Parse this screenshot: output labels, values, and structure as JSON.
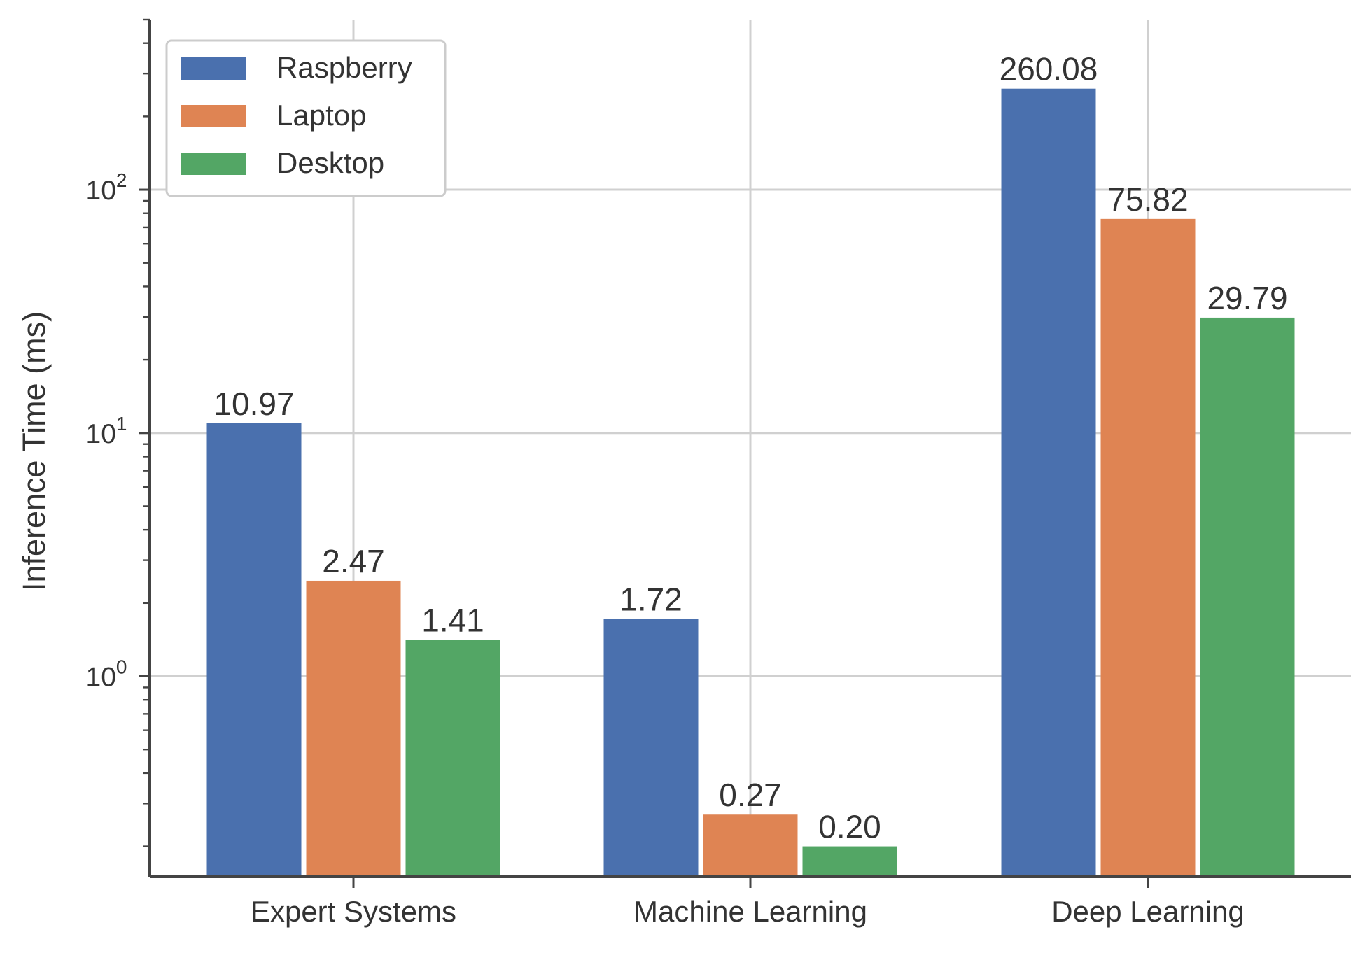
{
  "chart_data": {
    "type": "bar",
    "title": "",
    "xlabel": "",
    "ylabel": "Inference Time (ms)",
    "yscale": "log",
    "ylim": [
      0.15,
      500
    ],
    "categories": [
      "Expert Systems",
      "Machine Learning",
      "Deep Learning"
    ],
    "series": [
      {
        "name": "Raspberry",
        "color": "#4a70ae",
        "values": [
          10.97,
          1.72,
          260.08
        ],
        "labels": [
          "10.97",
          "1.72",
          "260.08"
        ]
      },
      {
        "name": "Laptop",
        "color": "#df8453",
        "values": [
          2.47,
          0.27,
          75.82
        ],
        "labels": [
          "2.47",
          "0.27",
          "75.82"
        ]
      },
      {
        "name": "Desktop",
        "color": "#53a665",
        "values": [
          1.41,
          0.2,
          29.79
        ],
        "labels": [
          "1.41",
          "0.20",
          "29.79"
        ]
      }
    ],
    "yticks": [
      {
        "value": 1,
        "base": "10",
        "exp": "0"
      },
      {
        "value": 10,
        "base": "10",
        "exp": "1"
      },
      {
        "value": 100,
        "base": "10",
        "exp": "2"
      }
    ],
    "grid": true,
    "legend_position": "top-left"
  }
}
